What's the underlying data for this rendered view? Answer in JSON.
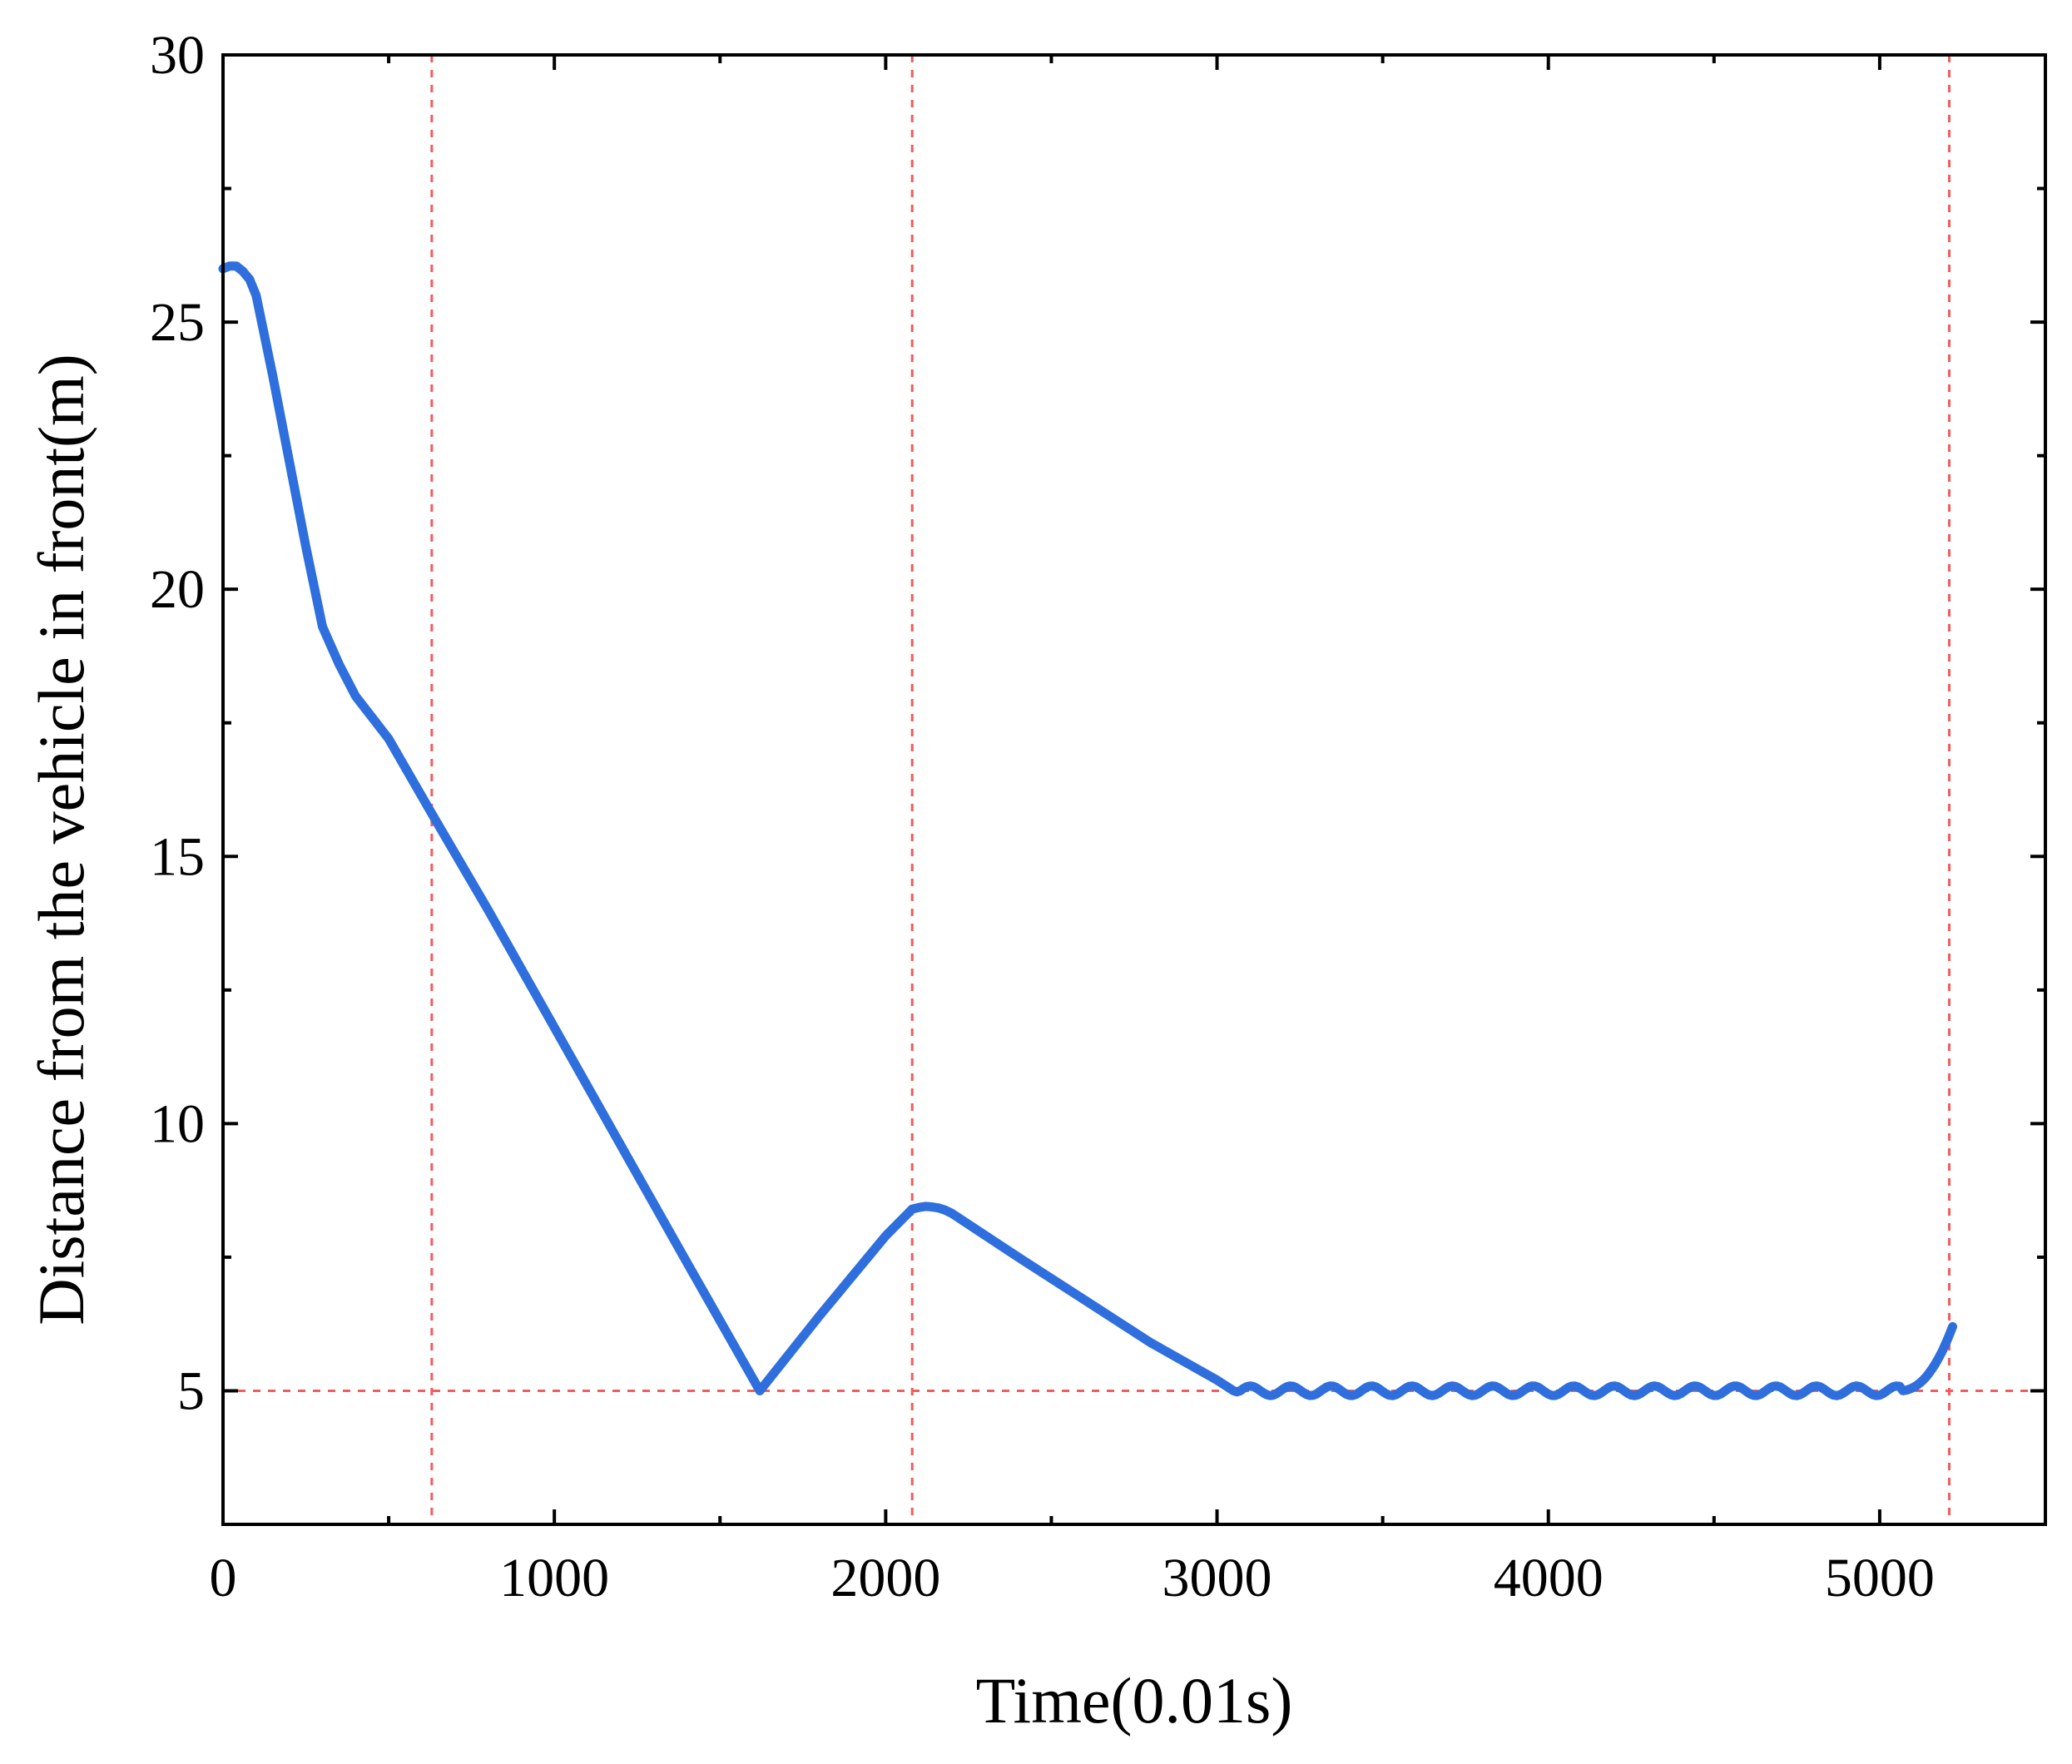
{
  "chart_data": {
    "type": "line",
    "title": "",
    "xlabel": "Time(0.01s)",
    "ylabel": "Distance from the vehicle in front(m)",
    "xlim": [
      0,
      5500
    ],
    "ylim": [
      2.5,
      30
    ],
    "x_ticks": [
      0,
      1000,
      2000,
      3000,
      4000,
      5000
    ],
    "y_ticks": [
      5,
      10,
      15,
      20,
      25,
      30
    ],
    "x_minor_ticks": [
      500,
      1500,
      2500,
      3500,
      4500
    ],
    "y_minor_ticks": [
      7.5,
      12.5,
      17.5,
      22.5,
      27.5
    ],
    "grid": false,
    "legend": "none",
    "series_color": "#2f6fdd",
    "reference_color": "#f25c5c",
    "reference_lines": {
      "vertical_x": [
        630,
        2080,
        5210
      ],
      "horizontal_y": [
        5
      ]
    },
    "series": [
      {
        "x": [
          0,
          20,
          40,
          60,
          80,
          100,
          150,
          200,
          250,
          300,
          350,
          400,
          450,
          500,
          630,
          800,
          1000,
          1200,
          1400,
          1620,
          1800,
          2000,
          2080,
          2100,
          2120,
          2140,
          2160,
          2180,
          2200,
          2400,
          2600,
          2800,
          3000,
          3050,
          3060
        ],
        "y": [
          26.0,
          26.05,
          26.05,
          25.95,
          25.8,
          25.5,
          24.0,
          22.4,
          20.8,
          19.3,
          18.6,
          18.0,
          17.6,
          17.2,
          15.8,
          14.0,
          11.8,
          9.6,
          7.4,
          5.0,
          6.4,
          7.9,
          8.4,
          8.43,
          8.45,
          8.44,
          8.42,
          8.38,
          8.32,
          7.5,
          6.7,
          5.9,
          5.2,
          5.0,
          4.98
        ]
      }
    ]
  }
}
